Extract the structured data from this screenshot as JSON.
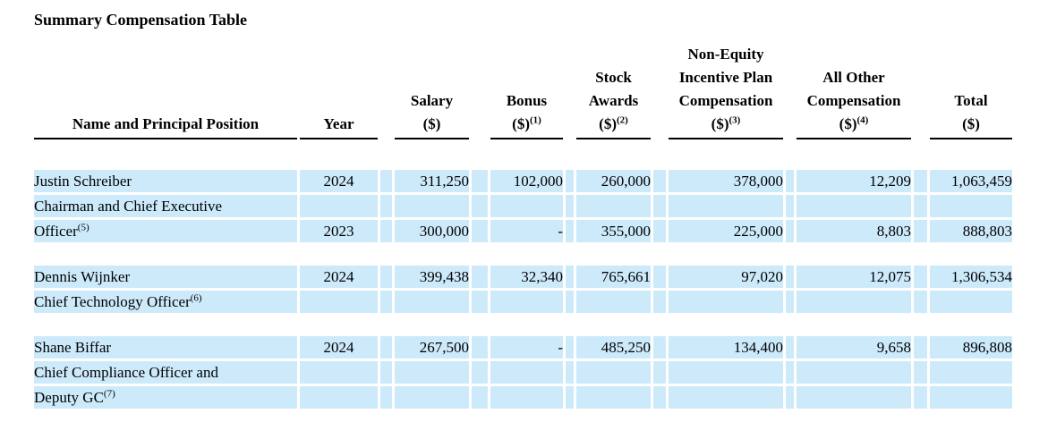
{
  "title": "Summary Compensation Table",
  "colors": {
    "row_highlight": "#cdeafb",
    "header_rule": "#000000",
    "text": "#000000",
    "background": "#ffffff"
  },
  "table": {
    "header": {
      "name": {
        "label": "Name and Principal Position"
      },
      "year": {
        "label": "Year"
      },
      "salary": {
        "lines": "Salary\n($)"
      },
      "bonus": {
        "lines": "Bonus\n($)",
        "sup": "(1)"
      },
      "stock": {
        "lines": "Stock\nAwards\n($)",
        "sup": "(2)"
      },
      "neip": {
        "lines": "Non-Equity\nIncentive Plan\nCompensation\n($)",
        "sup": "(3)"
      },
      "other": {
        "lines": "All Other\nCompensation\n($)",
        "sup": "(4)"
      },
      "total": {
        "lines": "Total\n($)"
      }
    },
    "rows": [
      {
        "name": "Justin Schreiber",
        "year": "2024",
        "salary": "311,250",
        "bonus": "102,000",
        "stock": "260,000",
        "neip": "378,000",
        "other": "12,209",
        "total": "1,063,459"
      },
      {
        "name": "Chairman and Chief Executive"
      },
      {
        "name": "Officer",
        "sup": "(5)",
        "year": "2023",
        "salary": "300,000",
        "bonus": "-",
        "stock": "355,000",
        "neip": "225,000",
        "other": "8,803",
        "total": "888,803"
      },
      {
        "name": "Dennis Wijnker",
        "year": "2024",
        "salary": "399,438",
        "bonus": "32,340",
        "stock": "765,661",
        "neip": "97,020",
        "other": "12,075",
        "total": "1,306,534"
      },
      {
        "name": "Chief Technology Officer",
        "sup": "(6)"
      },
      {
        "name": "Shane Biffar",
        "year": "2024",
        "salary": "267,500",
        "bonus": "-",
        "stock": "485,250",
        "neip": "134,400",
        "other": "9,658",
        "total": "896,808"
      },
      {
        "name": "Chief Compliance Officer and"
      },
      {
        "name": "Deputy GC",
        "sup": "(7)"
      }
    ]
  }
}
